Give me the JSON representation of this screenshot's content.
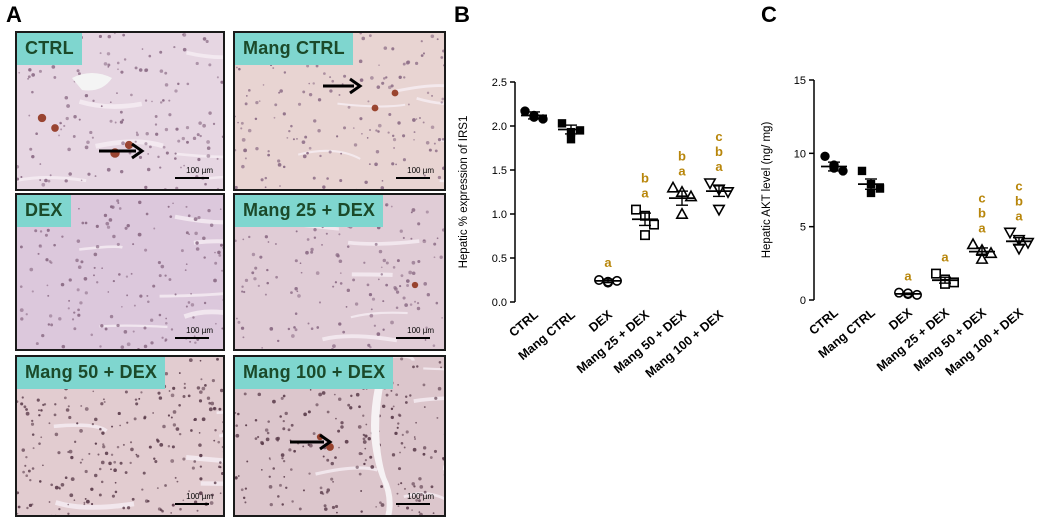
{
  "panels": {
    "a": "A",
    "b": "B",
    "c": "C"
  },
  "micrographs": [
    {
      "label": "CTRL",
      "scale": "100 µm",
      "tint": "#e6d6e2",
      "arrow": true
    },
    {
      "label": "Mang CTRL",
      "scale": "100 µm",
      "tint": "#e8d4d2",
      "arrow": true
    },
    {
      "label": "DEX",
      "scale": "100 µm",
      "tint": "#dcc8dc",
      "arrow": false
    },
    {
      "label": "Mang 25 + DEX",
      "scale": "100 µm",
      "tint": "#e0ccd6",
      "arrow": false
    },
    {
      "label": "Mang 50 + DEX",
      "scale": "100 µm",
      "tint": "#e2ccd0",
      "arrow": false
    },
    {
      "label": "Mang 100 + DEX",
      "scale": "100 µm",
      "tint": "#dcc6cc",
      "arrow": true
    }
  ],
  "colors": {
    "sig": "#b8860b",
    "axis": "#000000",
    "label_bg": "#7fd6cf"
  },
  "chart_data": [
    {
      "type": "scatter",
      "ylabel": "Hepatic % expression of IRS1",
      "ylim": [
        0,
        2.5
      ],
      "yticks": [
        "0.0",
        "0.5",
        "1.0",
        "1.5",
        "2.0",
        "2.5"
      ],
      "categories": [
        "CTRL",
        "Mang CTRL",
        "DEX",
        "Mang 25 + DEX",
        "Mang 50 + DEX",
        "Mang 100 + DEX"
      ],
      "markers": [
        "circle-filled",
        "square-filled",
        "circle-open",
        "square-open",
        "triangle-open",
        "triangle-down-open"
      ],
      "points": [
        [
          2.17,
          2.1,
          2.08,
          2.12
        ],
        [
          2.03,
          1.93,
          1.95,
          1.85
        ],
        [
          0.25,
          0.22,
          0.24,
          0.23
        ],
        [
          1.05,
          0.98,
          0.88,
          0.76
        ],
        [
          1.3,
          1.25,
          1.2,
          1.0
        ],
        [
          1.35,
          1.28,
          1.25,
          1.05
        ]
      ],
      "means": [
        2.12,
        1.96,
        0.24,
        0.94,
        1.18,
        1.26
      ],
      "sems": [
        0.04,
        0.05,
        0.02,
        0.07,
        0.08,
        0.06
      ],
      "significance": [
        [],
        [],
        [
          "a"
        ],
        [
          "b",
          "a"
        ],
        [
          "b",
          "a"
        ],
        [
          "c",
          "b",
          "a"
        ]
      ]
    },
    {
      "type": "scatter",
      "ylabel": "Hepatic AKT level (ng/ mg)",
      "ylim": [
        0,
        15
      ],
      "yticks": [
        "0",
        "5",
        "10",
        "15"
      ],
      "categories": [
        "CTRL",
        "Mang CTRL",
        "DEX",
        "Mang 25 + DEX",
        "Mang 50 + DEX",
        "Mang 100 + DEX"
      ],
      "markers": [
        "circle-filled",
        "square-filled",
        "circle-open",
        "square-open",
        "triangle-open",
        "triangle-down-open"
      ],
      "points": [
        [
          9.8,
          9.0,
          8.8,
          9.2
        ],
        [
          8.8,
          7.9,
          7.6,
          7.3
        ],
        [
          0.5,
          0.4,
          0.35,
          0.45
        ],
        [
          1.8,
          1.4,
          1.2,
          1.1
        ],
        [
          3.8,
          3.4,
          3.2,
          2.8
        ],
        [
          4.6,
          4.1,
          3.9,
          3.5
        ]
      ],
      "means": [
        9.1,
        7.9,
        0.42,
        1.35,
        3.3,
        4.0
      ],
      "sems": [
        0.3,
        0.35,
        0.05,
        0.2,
        0.25,
        0.25
      ],
      "significance": [
        [],
        [],
        [
          "a"
        ],
        [
          "a"
        ],
        [
          "c",
          "b",
          "a"
        ],
        [
          "c",
          "b",
          "a"
        ]
      ]
    }
  ]
}
